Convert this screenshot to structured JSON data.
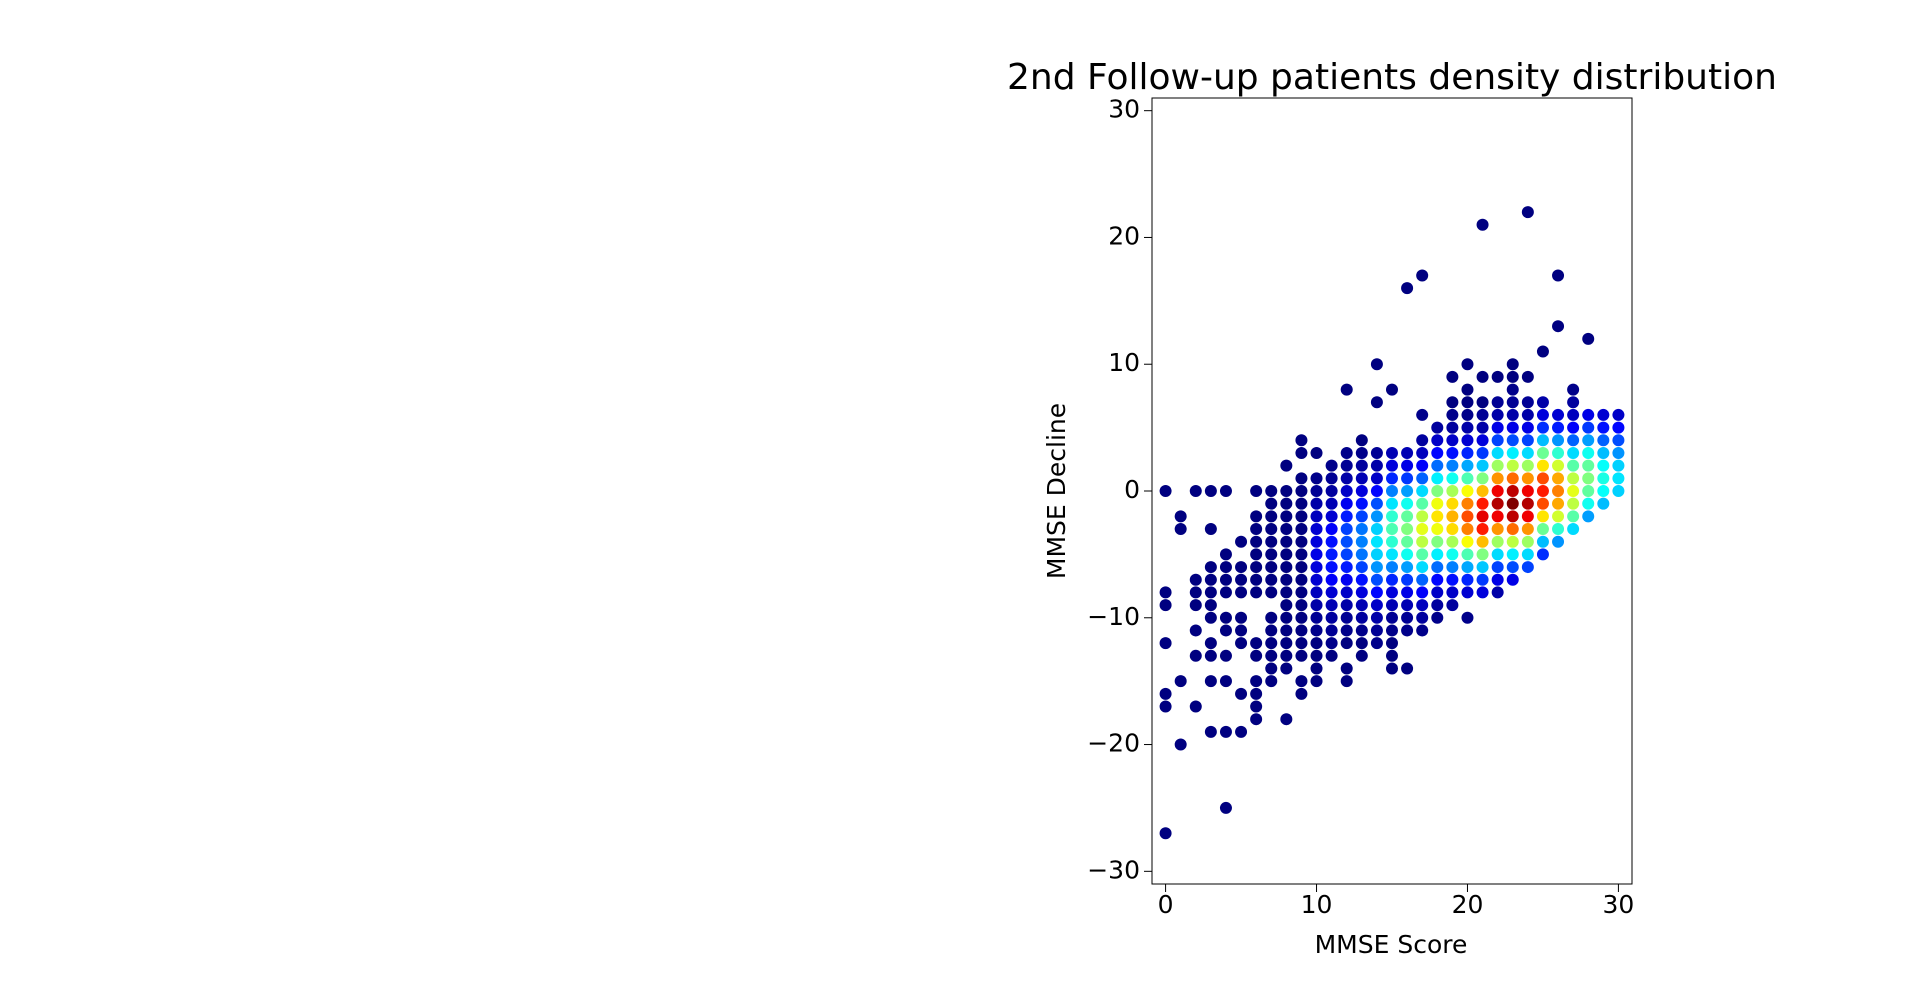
{
  "chart_data": {
    "type": "scatter",
    "title": "2nd Follow-up patients density distribution",
    "xlabel": "MMSE Score",
    "ylabel": "MMSE Decline",
    "xlim": [
      -0.9,
      30.9
    ],
    "ylim": [
      -31,
      31
    ],
    "xticks": [
      0,
      10,
      20,
      30
    ],
    "yticks": [
      {
        "value": -30,
        "label": "−30"
      },
      {
        "value": -20,
        "label": "−20"
      },
      {
        "value": -10,
        "label": "−10"
      },
      0,
      10,
      20,
      30
    ],
    "colormap": "jet",
    "x": [
      0,
      0,
      0,
      0,
      0,
      0,
      0,
      1,
      1,
      1,
      1,
      2,
      2,
      2,
      2,
      2,
      2,
      2,
      3,
      3,
      3,
      3,
      3,
      3,
      3,
      3,
      3,
      3,
      3,
      4,
      4,
      4,
      4,
      4,
      4,
      4,
      4,
      4,
      4,
      4,
      5,
      5,
      5,
      5,
      5,
      5,
      5,
      5,
      5,
      6,
      6,
      6,
      6,
      6,
      6,
      6,
      6,
      6,
      6,
      6,
      6,
      6,
      6,
      7,
      7,
      7,
      7,
      7,
      7,
      7,
      7,
      7,
      7,
      7,
      7,
      7,
      7,
      7,
      8,
      8,
      8,
      8,
      8,
      8,
      8,
      8,
      8,
      8,
      8,
      8,
      8,
      8,
      8,
      8,
      8,
      9,
      9,
      9,
      9,
      9,
      9,
      9,
      9,
      9,
      9,
      9,
      9,
      9,
      9,
      9,
      9,
      9,
      9,
      9,
      10,
      10,
      10,
      10,
      10,
      10,
      10,
      10,
      10,
      10,
      10,
      10,
      10,
      10,
      10,
      10,
      10,
      10,
      11,
      11,
      11,
      11,
      11,
      11,
      11,
      11,
      11,
      11,
      11,
      11,
      11,
      11,
      11,
      11,
      12,
      12,
      12,
      12,
      12,
      12,
      12,
      12,
      12,
      12,
      12,
      12,
      12,
      12,
      12,
      12,
      12,
      12,
      12,
      13,
      13,
      13,
      13,
      13,
      13,
      13,
      13,
      13,
      13,
      13,
      13,
      13,
      13,
      13,
      13,
      13,
      13,
      14,
      14,
      14,
      14,
      14,
      14,
      14,
      14,
      14,
      14,
      14,
      14,
      14,
      14,
      14,
      14,
      14,
      14,
      15,
      15,
      15,
      15,
      15,
      15,
      15,
      15,
      15,
      15,
      15,
      15,
      15,
      15,
      15,
      15,
      15,
      15,
      15,
      16,
      16,
      16,
      16,
      16,
      16,
      16,
      16,
      16,
      16,
      16,
      16,
      16,
      16,
      16,
      16,
      16,
      17,
      17,
      17,
      17,
      17,
      17,
      17,
      17,
      17,
      17,
      17,
      17,
      17,
      17,
      17,
      17,
      17,
      17,
      18,
      18,
      18,
      18,
      18,
      18,
      18,
      18,
      18,
      18,
      18,
      18,
      18,
      18,
      18,
      18,
      19,
      19,
      19,
      19,
      19,
      19,
      19,
      19,
      19,
      19,
      19,
      19,
      19,
      19,
      19,
      19,
      19,
      19,
      20,
      20,
      20,
      20,
      20,
      20,
      20,
      20,
      20,
      20,
      20,
      20,
      20,
      20,
      20,
      20,
      20,
      20,
      20,
      21,
      21,
      21,
      21,
      21,
      21,
      21,
      21,
      21,
      21,
      21,
      21,
      21,
      21,
      21,
      21,
      21,
      21,
      22,
      22,
      22,
      22,
      22,
      22,
      22,
      22,
      22,
      22,
      22,
      22,
      22,
      22,
      22,
      22,
      22,
      23,
      23,
      23,
      23,
      23,
      23,
      23,
      23,
      23,
      23,
      23,
      23,
      23,
      23,
      23,
      23,
      23,
      23,
      24,
      24,
      24,
      24,
      24,
      24,
      24,
      24,
      24,
      24,
      24,
      24,
      24,
      24,
      24,
      24,
      25,
      25,
      25,
      25,
      25,
      25,
      25,
      25,
      25,
      25,
      25,
      25,
      25,
      25,
      26,
      26,
      26,
      26,
      26,
      26,
      26,
      26,
      26,
      26,
      26,
      26,
      26,
      27,
      27,
      27,
      27,
      27,
      27,
      27,
      27,
      27,
      27,
      27,
      27,
      28,
      28,
      28,
      28,
      28,
      28,
      28,
      28,
      28,
      28,
      29,
      29,
      29,
      29,
      29,
      29,
      29,
      29,
      30,
      30,
      30,
      30,
      30,
      30,
      30
    ],
    "values": [
      0,
      -8,
      -9,
      -12,
      -16,
      -17,
      -27,
      -2,
      -3,
      -15,
      -20,
      0,
      -7,
      -8,
      -9,
      -11,
      -13,
      -17,
      0,
      -3,
      -6,
      -7,
      -8,
      -9,
      -10,
      -12,
      -13,
      -15,
      -19,
      0,
      -5,
      -6,
      -7,
      -8,
      -10,
      -11,
      -13,
      -15,
      -19,
      -25,
      -4,
      -6,
      -7,
      -8,
      -10,
      -11,
      -12,
      -16,
      -19,
      0,
      -2,
      -3,
      -4,
      -5,
      -6,
      -7,
      -8,
      -12,
      -13,
      -15,
      -16,
      -17,
      -18,
      0,
      -1,
      -2,
      -3,
      -4,
      -5,
      -6,
      -7,
      -8,
      -10,
      -11,
      -12,
      -13,
      -14,
      -15,
      2,
      0,
      -1,
      -2,
      -3,
      -4,
      -5,
      -6,
      -7,
      -8,
      -9,
      -10,
      -11,
      -12,
      -13,
      -14,
      -18,
      4,
      3,
      1,
      0,
      -1,
      -2,
      -3,
      -4,
      -5,
      -6,
      -7,
      -8,
      -9,
      -10,
      -11,
      -12,
      -13,
      -15,
      -16,
      3,
      1,
      0,
      -1,
      -2,
      -3,
      -4,
      -5,
      -6,
      -7,
      -8,
      -9,
      -10,
      -11,
      -12,
      -13,
      -14,
      -15,
      2,
      1,
      0,
      -1,
      -2,
      -3,
      -4,
      -5,
      -6,
      -7,
      -8,
      -9,
      -10,
      -11,
      -12,
      -13,
      8,
      3,
      2,
      1,
      0,
      -1,
      -2,
      -3,
      -4,
      -5,
      -6,
      -7,
      -8,
      -9,
      -10,
      -11,
      -12,
      -14,
      -15,
      4,
      3,
      2,
      1,
      0,
      -1,
      -2,
      -3,
      -4,
      -5,
      -6,
      -7,
      -8,
      -9,
      -10,
      -11,
      -12,
      -13,
      10,
      7,
      3,
      2,
      1,
      0,
      -1,
      -2,
      -3,
      -4,
      -5,
      -6,
      -7,
      -8,
      -9,
      -10,
      -11,
      -12,
      8,
      3,
      2,
      1,
      0,
      -1,
      -2,
      -3,
      -4,
      -5,
      -6,
      -7,
      -8,
      -9,
      -10,
      -11,
      -12,
      -13,
      -14,
      16,
      3,
      2,
      1,
      0,
      -1,
      -2,
      -3,
      -4,
      -5,
      -6,
      -7,
      -8,
      -9,
      -10,
      -11,
      -14,
      17,
      6,
      4,
      3,
      2,
      1,
      0,
      -1,
      -2,
      -3,
      -4,
      -5,
      -6,
      -7,
      -8,
      -9,
      -10,
      -11,
      5,
      4,
      3,
      2,
      1,
      0,
      -1,
      -2,
      -3,
      -4,
      -5,
      -6,
      -7,
      -8,
      -9,
      -10,
      9,
      7,
      6,
      5,
      4,
      3,
      2,
      1,
      0,
      -1,
      -2,
      -3,
      -4,
      -5,
      -6,
      -7,
      -8,
      -9,
      10,
      8,
      7,
      6,
      5,
      4,
      3,
      2,
      1,
      0,
      -1,
      -2,
      -3,
      -4,
      -5,
      -6,
      -7,
      -8,
      -10,
      21,
      9,
      7,
      6,
      5,
      4,
      3,
      2,
      1,
      0,
      -1,
      -2,
      -3,
      -4,
      -5,
      -6,
      -7,
      -8,
      9,
      7,
      6,
      5,
      4,
      3,
      2,
      1,
      0,
      -1,
      -2,
      -3,
      -4,
      -5,
      -6,
      -7,
      -8,
      10,
      9,
      8,
      7,
      6,
      5,
      4,
      3,
      2,
      1,
      0,
      -1,
      -2,
      -3,
      -4,
      -5,
      -6,
      -7,
      22,
      9,
      7,
      6,
      5,
      4,
      3,
      2,
      1,
      0,
      -1,
      -2,
      -3,
      -4,
      -5,
      -6,
      11,
      7,
      6,
      5,
      4,
      3,
      2,
      1,
      0,
      -1,
      -2,
      -3,
      -4,
      -5,
      17,
      13,
      6,
      5,
      4,
      3,
      2,
      1,
      0,
      -1,
      -2,
      -3,
      -4,
      8,
      7,
      6,
      5,
      4,
      3,
      2,
      1,
      0,
      -1,
      -2,
      -3,
      12,
      6,
      5,
      4,
      3,
      2,
      1,
      0,
      -1,
      -2,
      6,
      5,
      4,
      3,
      2,
      1,
      0,
      -1,
      6,
      5,
      4,
      3,
      2,
      1,
      0
    ],
    "density": [
      0,
      0,
      0,
      0,
      0,
      0,
      0,
      0,
      0,
      0,
      0,
      0,
      0,
      0,
      0,
      0,
      0,
      0,
      0,
      0,
      0,
      0,
      0,
      0,
      0,
      0,
      0,
      0,
      0,
      0,
      0,
      0,
      0,
      0,
      0,
      0,
      0,
      0,
      0,
      0,
      0,
      0,
      0,
      0,
      0,
      0,
      0,
      0,
      0,
      0,
      0,
      0,
      0,
      0,
      0,
      0,
      0,
      0,
      0,
      0,
      0,
      0,
      0,
      0,
      0,
      0,
      0,
      0,
      0,
      0,
      0,
      0,
      0,
      0,
      0,
      0,
      0,
      0,
      0,
      0,
      0,
      0,
      0,
      0,
      0,
      0,
      0,
      0,
      0,
      0,
      0,
      0,
      0,
      0,
      0,
      0,
      0,
      0,
      0,
      0,
      0,
      0,
      0,
      0,
      0,
      0,
      0,
      0,
      0,
      0,
      0,
      0,
      0,
      0,
      0,
      0.01,
      0.02,
      0.04,
      0.06,
      0.08,
      0.09,
      0.1,
      0.09,
      0.08,
      0.06,
      0.04,
      0.02,
      0.01,
      0,
      0,
      0,
      0,
      0.01,
      0.02,
      0.03,
      0.05,
      0.08,
      0.12,
      0.14,
      0.15,
      0.14,
      0.12,
      0.08,
      0.05,
      0.03,
      0.02,
      0.01,
      0,
      0,
      0.01,
      0.02,
      0.04,
      0.07,
      0.11,
      0.15,
      0.19,
      0.2,
      0.19,
      0.15,
      0.11,
      0.07,
      0.04,
      0.02,
      0.01,
      0,
      0,
      0,
      0,
      0.01,
      0.03,
      0.05,
      0.09,
      0.14,
      0.19,
      0.24,
      0.25,
      0.24,
      0.19,
      0.14,
      0.09,
      0.05,
      0.03,
      0.01,
      0,
      0,
      0,
      0,
      0.02,
      0.04,
      0.07,
      0.13,
      0.2,
      0.27,
      0.33,
      0.35,
      0.33,
      0.27,
      0.2,
      0.13,
      0.07,
      0.04,
      0.02,
      0.01,
      0,
      0.05,
      0.09,
      0.16,
      0.25,
      0.35,
      0.42,
      0.45,
      0.42,
      0.35,
      0.25,
      0.16,
      0.09,
      0.05,
      0.02,
      0.01,
      0,
      0,
      0,
      0,
      0.05,
      0.1,
      0.18,
      0.28,
      0.39,
      0.47,
      0.5,
      0.47,
      0.39,
      0.28,
      0.18,
      0.1,
      0.05,
      0.02,
      0.01,
      0,
      0,
      0.01,
      0.03,
      0.06,
      0.12,
      0.22,
      0.34,
      0.46,
      0.56,
      0.6,
      0.56,
      0.46,
      0.34,
      0.22,
      0.12,
      0.06,
      0.03,
      0.01,
      0.03,
      0.07,
      0.13,
      0.23,
      0.36,
      0.5,
      0.61,
      0.65,
      0.61,
      0.5,
      0.36,
      0.23,
      0.13,
      0.07,
      0.03,
      0.01,
      0,
      0,
      0.01,
      0.03,
      0.07,
      0.14,
      0.25,
      0.39,
      0.54,
      0.66,
      0.7,
      0.66,
      0.54,
      0.39,
      0.25,
      0.14,
      0.07,
      0.03,
      0,
      0,
      0,
      0.01,
      0.04,
      0.08,
      0.16,
      0.29,
      0.45,
      0.62,
      0.75,
      0.8,
      0.75,
      0.62,
      0.45,
      0.29,
      0.16,
      0.08,
      0.01,
      0,
      0,
      0,
      0.02,
      0.04,
      0.09,
      0.18,
      0.32,
      0.5,
      0.69,
      0.85,
      0.9,
      0.85,
      0.69,
      0.5,
      0.32,
      0.18,
      0.09,
      0,
      0.02,
      0.04,
      0.1,
      0.19,
      0.34,
      0.53,
      0.73,
      0.89,
      0.95,
      0.89,
      0.73,
      0.53,
      0.34,
      0.19,
      0.1,
      0.04,
      0,
      0,
      0.01,
      0.02,
      0.04,
      0.1,
      0.2,
      0.36,
      0.56,
      0.77,
      0.94,
      1,
      0.94,
      0.77,
      0.56,
      0.36,
      0.2,
      0.1,
      0,
      0,
      0.02,
      0.04,
      0.1,
      0.19,
      0.34,
      0.53,
      0.73,
      0.89,
      0.95,
      0.89,
      0.73,
      0.53,
      0.34,
      0.19,
      0,
      0.04,
      0.09,
      0.17,
      0.31,
      0.48,
      0.65,
      0.8,
      0.85,
      0.8,
      0.65,
      0.48,
      0.31,
      0.17,
      0,
      0,
      0.08,
      0.15,
      0.27,
      0.42,
      0.58,
      0.71,
      0.75,
      0.71,
      0.58,
      0.42,
      0.27,
      0.01,
      0.03,
      0.06,
      0.12,
      0.22,
      0.34,
      0.46,
      0.56,
      0.6,
      0.56,
      0.46,
      0.34,
      0,
      0.1,
      0.18,
      0.28,
      0.39,
      0.47,
      0.5,
      0.47,
      0.39,
      0.28,
      0.08,
      0.14,
      0.22,
      0.31,
      0.38,
      0.4,
      0.38,
      0.31,
      0.07,
      0.13,
      0.2,
      0.27,
      0.33,
      0.35,
      0.33
    ]
  }
}
